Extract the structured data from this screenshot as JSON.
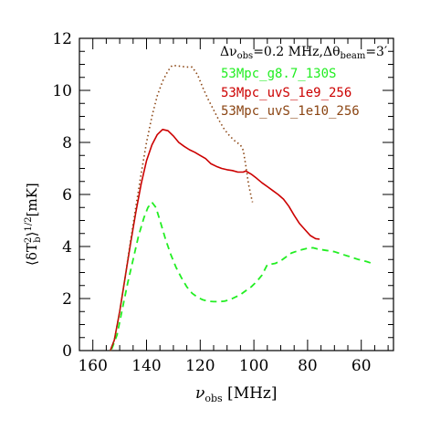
{
  "chart_data": {
    "type": "line",
    "xlim": [
      165,
      48
    ],
    "ylim": [
      0,
      12
    ],
    "x_ticks": [
      160,
      140,
      120,
      100,
      80,
      60
    ],
    "y_ticks": [
      0,
      2,
      4,
      6,
      8,
      10,
      12
    ],
    "x_tick_labels": [
      "160",
      "140",
      "120",
      "100",
      "80",
      "60"
    ],
    "y_tick_labels": [
      "0",
      "2",
      "4",
      "6",
      "8",
      "10",
      "12"
    ],
    "xlabel": {
      "main": "ν",
      "sub": "obs",
      "rest": " [MHz]"
    },
    "ylabel": {
      "pre": "⟨δT",
      "sup": "2",
      "sub": "b",
      "post": "⟩",
      "sup2": "1/2",
      "rest": "[mK]"
    },
    "annotation": {
      "d1": "Δν",
      "s1": "obs",
      "m1": "=0.2 MHz,Δθ",
      "s2": "beam",
      "m2": "=3′"
    },
    "legend_placement": "top-right",
    "series": [
      {
        "name": "53Mpc_g8.7_130S",
        "color": "#22ee22",
        "style": "dashed",
        "points": [
          [
            153,
            0.05
          ],
          [
            151,
            0.6
          ],
          [
            149,
            1.6
          ],
          [
            147,
            2.6
          ],
          [
            145,
            3.5
          ],
          [
            143,
            4.4
          ],
          [
            141,
            5.1
          ],
          [
            139.5,
            5.5
          ],
          [
            138,
            5.7
          ],
          [
            136.5,
            5.5
          ],
          [
            135,
            5.0
          ],
          [
            133,
            4.3
          ],
          [
            131,
            3.7
          ],
          [
            129,
            3.2
          ],
          [
            127,
            2.8
          ],
          [
            125,
            2.45
          ],
          [
            123,
            2.2
          ],
          [
            121,
            2.05
          ],
          [
            119,
            1.95
          ],
          [
            117,
            1.9
          ],
          [
            115,
            1.88
          ],
          [
            113,
            1.88
          ],
          [
            111,
            1.9
          ],
          [
            109,
            1.95
          ],
          [
            107,
            2.05
          ],
          [
            105,
            2.15
          ],
          [
            103,
            2.3
          ],
          [
            101,
            2.45
          ],
          [
            99,
            2.65
          ],
          [
            97,
            2.9
          ],
          [
            95.5,
            3.2
          ],
          [
            95,
            3.3
          ],
          [
            92,
            3.35
          ],
          [
            90,
            3.45
          ],
          [
            88,
            3.6
          ],
          [
            86,
            3.75
          ],
          [
            84,
            3.82
          ],
          [
            82,
            3.88
          ],
          [
            80,
            3.93
          ],
          [
            78,
            3.95
          ],
          [
            76,
            3.9
          ],
          [
            73,
            3.85
          ],
          [
            70,
            3.8
          ],
          [
            67,
            3.7
          ],
          [
            64,
            3.6
          ],
          [
            61,
            3.5
          ],
          [
            58,
            3.42
          ],
          [
            56,
            3.35
          ]
        ]
      },
      {
        "name": "53Mpc_uvS_1e9_256",
        "color": "#cc0000",
        "style": "solid",
        "points": [
          [
            153.5,
            0.0
          ],
          [
            152,
            0.4
          ],
          [
            150,
            1.5
          ],
          [
            148,
            2.8
          ],
          [
            146,
            4.1
          ],
          [
            144,
            5.3
          ],
          [
            142,
            6.4
          ],
          [
            140,
            7.3
          ],
          [
            138,
            7.9
          ],
          [
            136,
            8.3
          ],
          [
            134,
            8.5
          ],
          [
            132,
            8.45
          ],
          [
            130,
            8.25
          ],
          [
            128,
            8.0
          ],
          [
            126,
            7.85
          ],
          [
            124,
            7.72
          ],
          [
            122,
            7.62
          ],
          [
            120,
            7.5
          ],
          [
            118,
            7.38
          ],
          [
            116,
            7.18
          ],
          [
            114,
            7.08
          ],
          [
            112,
            7.0
          ],
          [
            110,
            6.95
          ],
          [
            108,
            6.92
          ],
          [
            106,
            6.86
          ],
          [
            104,
            6.86
          ],
          [
            103,
            6.9
          ],
          [
            101,
            6.78
          ],
          [
            99,
            6.62
          ],
          [
            97,
            6.45
          ],
          [
            95,
            6.3
          ],
          [
            93,
            6.15
          ],
          [
            91,
            6.0
          ],
          [
            89,
            5.82
          ],
          [
            87,
            5.55
          ],
          [
            85,
            5.2
          ],
          [
            83,
            4.88
          ],
          [
            81,
            4.65
          ],
          [
            79,
            4.42
          ],
          [
            77,
            4.3
          ],
          [
            75.5,
            4.28
          ]
        ]
      },
      {
        "name": "53Mpc_uvS_1e10_256",
        "color": "#8b4513",
        "style": "dotted",
        "points": [
          [
            153.5,
            0.0
          ],
          [
            152,
            0.4
          ],
          [
            150,
            1.5
          ],
          [
            148,
            2.8
          ],
          [
            146,
            4.2
          ],
          [
            144,
            5.5
          ],
          [
            142,
            6.8
          ],
          [
            140,
            8.0
          ],
          [
            138,
            9.0
          ],
          [
            136,
            9.8
          ],
          [
            134,
            10.35
          ],
          [
            132,
            10.75
          ],
          [
            130.5,
            10.95
          ],
          [
            129,
            10.95
          ],
          [
            127,
            10.92
          ],
          [
            125,
            10.9
          ],
          [
            123,
            10.9
          ],
          [
            121,
            10.6
          ],
          [
            119,
            10.1
          ],
          [
            117,
            9.65
          ],
          [
            115,
            9.25
          ],
          [
            113,
            8.85
          ],
          [
            111,
            8.5
          ],
          [
            109,
            8.25
          ],
          [
            107,
            8.05
          ],
          [
            105,
            7.9
          ],
          [
            104,
            7.7
          ],
          [
            103,
            7.1
          ],
          [
            102,
            6.4
          ],
          [
            101,
            5.9
          ],
          [
            100.5,
            5.7
          ]
        ]
      }
    ]
  }
}
